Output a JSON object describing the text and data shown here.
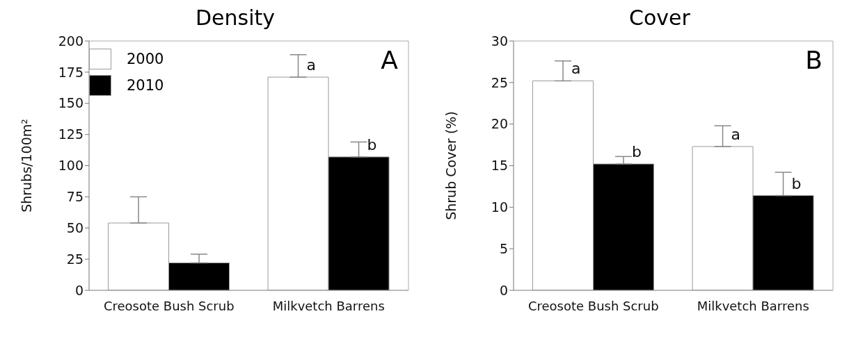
{
  "chart_data": [
    {
      "type": "bar",
      "title": "Density",
      "ylabel": "Shrubs/100m²",
      "categories": [
        "Creosote Bush Scrub",
        "Milkvetch Barrens"
      ],
      "series": [
        {
          "name": "2000",
          "color": "#ffffff",
          "values": [
            54,
            171
          ],
          "errors": [
            [
              54,
              75
            ],
            [
              171,
              189
            ]
          ],
          "value_labels": [
            null,
            "a"
          ]
        },
        {
          "name": "2010",
          "color": "#000000",
          "values": [
            22,
            107
          ],
          "errors": [
            [
              22,
              29
            ],
            [
              107,
              119
            ]
          ],
          "value_labels": [
            null,
            "b"
          ]
        }
      ],
      "ylim": [
        0,
        200
      ],
      "yticks": [
        0,
        25,
        50,
        75,
        100,
        125,
        150,
        175,
        200
      ],
      "grid": false,
      "legend": "top left",
      "annotations": [
        "A"
      ]
    },
    {
      "type": "bar",
      "title": "Cover",
      "ylabel": "Shrub Cover (%)",
      "categories": [
        "Creosote Bush Scrub",
        "Milkvetch Barrens"
      ],
      "series": [
        {
          "color": "#ffffff",
          "values": [
            25.2,
            17.3
          ],
          "errors": [
            [
              25.2,
              27.6
            ],
            [
              17.3,
              19.8
            ]
          ],
          "value_labels": [
            "a",
            "a"
          ]
        },
        {
          "color": "#000000",
          "values": [
            15.2,
            11.4
          ],
          "errors": [
            [
              15.2,
              16.1
            ],
            [
              11.4,
              14.2
            ]
          ],
          "value_labels": [
            "b",
            "b"
          ]
        }
      ],
      "ylim": [
        0,
        30
      ],
      "yticks": [
        0,
        5,
        10,
        15,
        20,
        25,
        30
      ],
      "grid": false,
      "annotations": [
        "B"
      ]
    }
  ]
}
